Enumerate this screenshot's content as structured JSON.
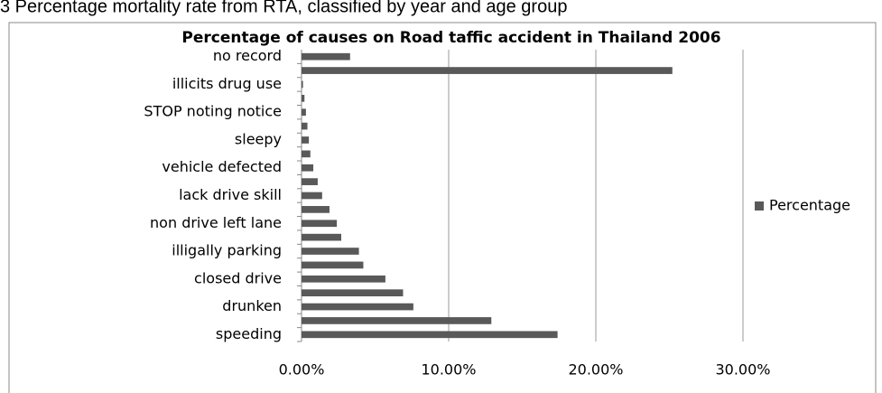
{
  "caption": "3 Percentage mortality rate from RTA, classified by year and age group",
  "chart_data": {
    "type": "bar",
    "orientation": "horizontal",
    "title": "Percentage of causes on Road taffic accident in Thailand 2006",
    "categories": [
      "speeding",
      null,
      "drunken",
      null,
      "closed drive",
      null,
      "illigally parking",
      null,
      "non drive left lane",
      null,
      "lack drive skill",
      null,
      "vehicle defected",
      null,
      "sleepy",
      null,
      "STOP noting notice",
      null,
      "illicits drug use",
      null,
      "no record"
    ],
    "series": [
      {
        "name": "Percentage",
        "color": "#595959",
        "values": [
          17.4,
          12.9,
          7.6,
          6.9,
          5.7,
          4.2,
          3.9,
          2.7,
          2.4,
          1.9,
          1.4,
          1.1,
          0.8,
          0.6,
          0.5,
          0.4,
          0.3,
          0.2,
          0.1,
          25.2,
          3.3
        ]
      }
    ],
    "xlim": [
      0,
      30
    ],
    "xticks": [
      {
        "value": 0,
        "label": "0.00%"
      },
      {
        "value": 10,
        "label": "10.00%"
      },
      {
        "value": 20,
        "label": "20.00%"
      },
      {
        "value": 30,
        "label": "30.00%"
      }
    ],
    "grid": true,
    "legend": "right"
  }
}
